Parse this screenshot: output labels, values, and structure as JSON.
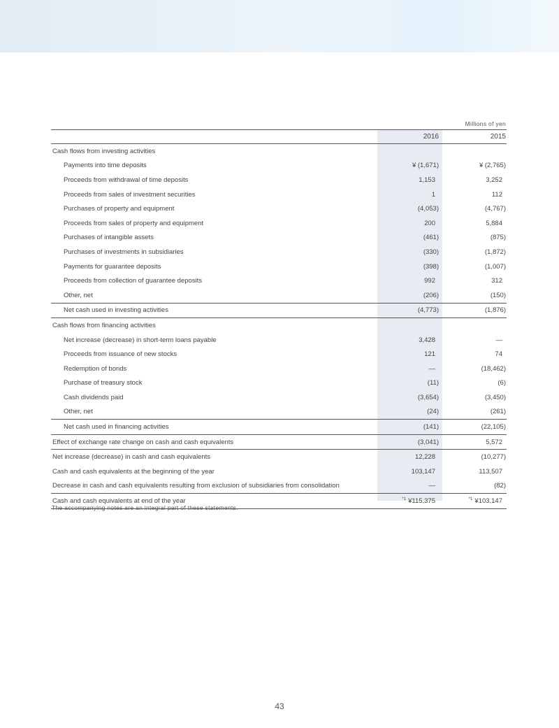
{
  "unit_label": "Millions of yen",
  "columns": [
    "2016",
    "2015"
  ],
  "rows": [
    {
      "label": "Cash flows from investing activities",
      "type": "section",
      "v2016": "",
      "v2015": ""
    },
    {
      "label": "Payments into time deposits",
      "type": "item",
      "v2016": "¥  (1,671)",
      "v2015": "¥  (2,765)"
    },
    {
      "label": "Proceeds from withdrawal of time deposits",
      "type": "item",
      "v2016": "1,153",
      "v2015": "3,252"
    },
    {
      "label": "Proceeds from sales of investment securities",
      "type": "item",
      "v2016": "1",
      "v2015": "112"
    },
    {
      "label": "Purchases of property and equipment",
      "type": "item",
      "v2016": "(4,053)",
      "v2015": "(4,767)"
    },
    {
      "label": "Proceeds from sales of property and equipment",
      "type": "item",
      "v2016": "200",
      "v2015": "5,884"
    },
    {
      "label": "Purchases of intangible assets",
      "type": "item",
      "v2016": "(461)",
      "v2015": "(875)"
    },
    {
      "label": "Purchases of investments in subsidiaries",
      "type": "item",
      "v2016": "(330)",
      "v2015": "(1,872)"
    },
    {
      "label": "Payments for guarantee deposits",
      "type": "item",
      "v2016": "(398)",
      "v2015": "(1,007)"
    },
    {
      "label": "Proceeds from collection of guarantee deposits",
      "type": "item",
      "v2016": "992",
      "v2015": "312"
    },
    {
      "label": "Other, net",
      "type": "item",
      "v2016": "(206)",
      "v2015": "(150)"
    },
    {
      "label": "Net cash used in investing activities",
      "type": "subtotal",
      "v2016": "(4,773)",
      "v2015": "(1,876)"
    },
    {
      "label": "Cash flows from financing activities",
      "type": "section",
      "v2016": "",
      "v2015": ""
    },
    {
      "label": "Net increase (decrease) in short-term loans payable",
      "type": "item",
      "v2016": "3,428",
      "v2015": "—"
    },
    {
      "label": "Proceeds from issuance of new stocks",
      "type": "item",
      "v2016": "121",
      "v2015": "74"
    },
    {
      "label": "Redemption of bonds",
      "type": "item",
      "v2016": "—",
      "v2015": "(18,462)"
    },
    {
      "label": "Purchase of treasury stock",
      "type": "item",
      "v2016": "(11)",
      "v2015": "(6)"
    },
    {
      "label": "Cash dividends paid",
      "type": "item",
      "v2016": "(3,654)",
      "v2015": "(3,450)"
    },
    {
      "label": "Other, net",
      "type": "item",
      "v2016": "(24)",
      "v2015": "(261)"
    },
    {
      "label": "Net cash used in financing activities",
      "type": "subtotal",
      "v2016": "(141)",
      "v2015": "(22,105)"
    },
    {
      "label": "Effect of exchange rate change on cash and cash equivalents",
      "type": "total",
      "v2016": "(3,041)",
      "v2015": "5,572"
    },
    {
      "label": "Net increase (decrease) in cash and cash equivalents",
      "type": "total",
      "v2016": "12,228",
      "v2015": "(10,277)"
    },
    {
      "label": "Cash and cash equivalents at the beginning of the year",
      "type": "plain",
      "v2016": "103,147",
      "v2015": "113,507"
    },
    {
      "label": "Decrease in cash and cash equivalents resulting from exclusion of subsidiaries from consolidation",
      "type": "plain",
      "v2016": "—",
      "v2015": "(82)"
    },
    {
      "label": "Cash and cash equivalents at end of the year",
      "type": "final",
      "v2016": "¥115,375",
      "v2015": "¥103,147",
      "footnote_mark": "*1"
    }
  ],
  "note": "The accompanying notes are an integral part of these statements.",
  "page_number": "43",
  "colors": {
    "header_band": "#e5f0f8",
    "shaded_column": "#e6ecf1"
  }
}
